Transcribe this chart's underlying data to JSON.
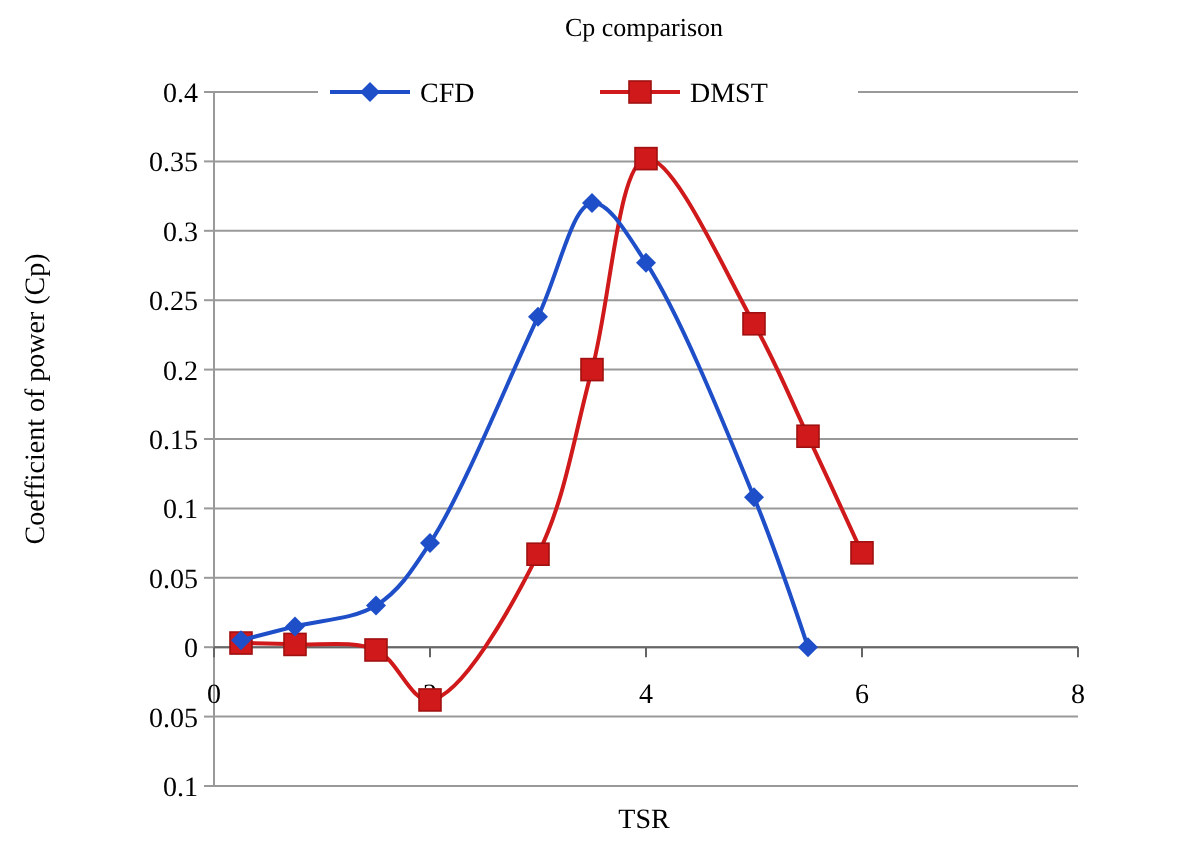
{
  "chart_data": {
    "type": "line",
    "title": "Cp comparison",
    "xlabel": "TSR",
    "ylabel": "Coefficient of power (Cp)",
    "xlim": [
      0,
      8
    ],
    "xticks": [
      0,
      2,
      4,
      6,
      8
    ],
    "ylim": [
      -0.1,
      0.4
    ],
    "yticks": [
      {
        "value": -0.1,
        "label": "0.1"
      },
      {
        "value": -0.05,
        "label": "0.05"
      },
      0,
      0.05,
      0.1,
      0.15,
      0.2,
      0.25,
      0.3,
      0.35,
      0.4
    ],
    "grid": "y",
    "legend": "top",
    "line_style": "solid",
    "series": [
      {
        "name": "CFD",
        "color": "#1f4fc8",
        "marker": "diamond",
        "x": [
          0.25,
          0.75,
          1.5,
          2,
          3,
          3.5,
          4,
          5,
          5.5
        ],
        "values": [
          0.005,
          0.015,
          0.03,
          0.075,
          0.238,
          0.32,
          0.277,
          0.108,
          0
        ]
      },
      {
        "name": "DMST",
        "color": "#d0191b",
        "marker": "square",
        "x": [
          0.25,
          0.75,
          1.5,
          2,
          3,
          3.5,
          4,
          5,
          5.5,
          6
        ],
        "values": [
          0.003,
          0.002,
          -0.002,
          -0.038,
          0.067,
          0.2,
          0.352,
          0.233,
          0.152,
          0.068
        ]
      }
    ]
  }
}
